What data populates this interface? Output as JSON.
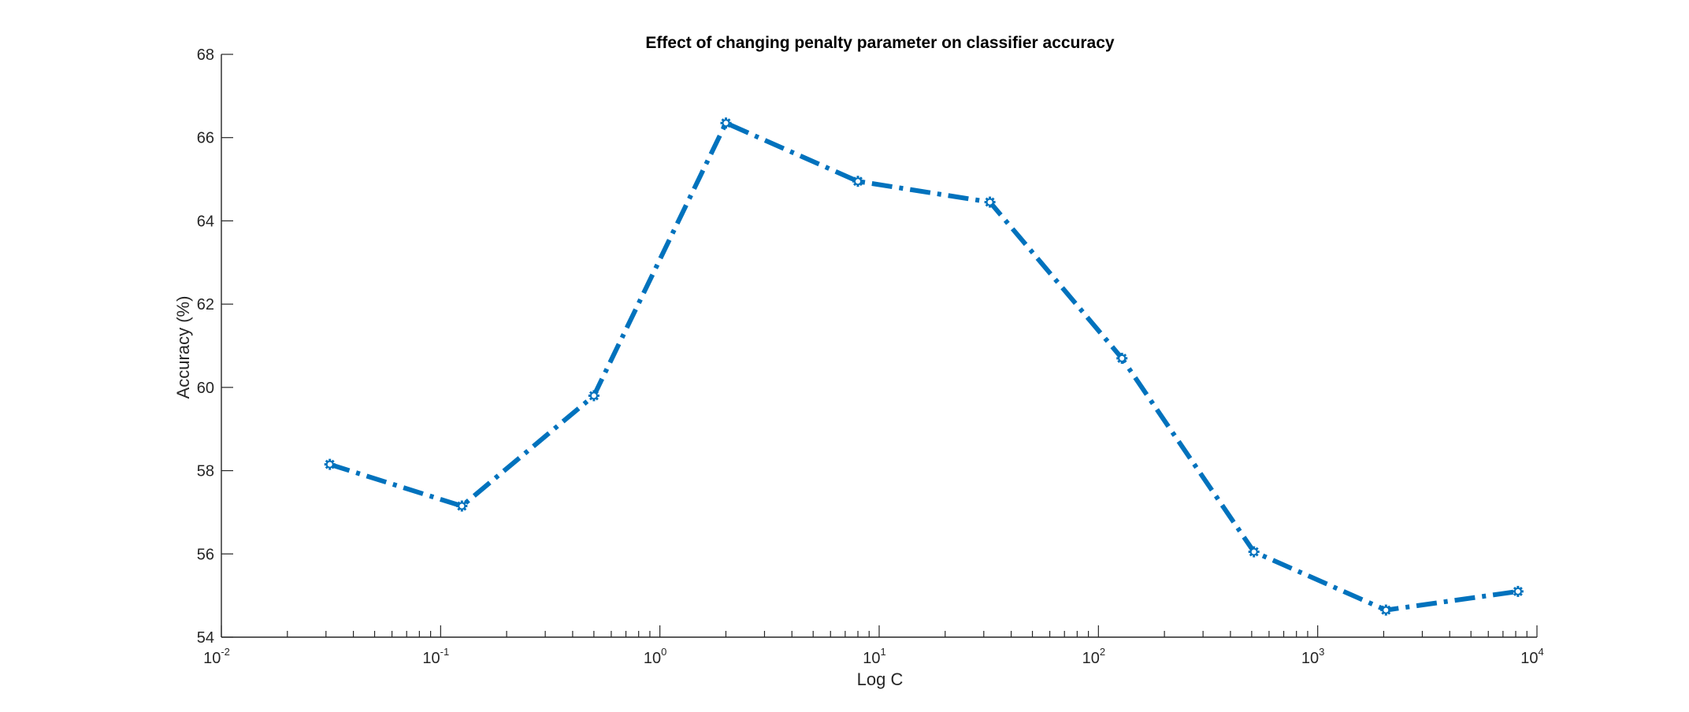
{
  "chart_data": {
    "type": "line",
    "title": "Effect of changing penalty parameter on classifier accuracy",
    "xlabel": "Log C",
    "ylabel": "Accuracy (%)",
    "x_scale": "log",
    "xlim": [
      0.01,
      10000
    ],
    "ylim": [
      54,
      68
    ],
    "x_ticks": [
      {
        "base": "10",
        "exp": "-2",
        "value": 0.01
      },
      {
        "base": "10",
        "exp": "-1",
        "value": 0.1
      },
      {
        "base": "10",
        "exp": "0",
        "value": 1
      },
      {
        "base": "10",
        "exp": "1",
        "value": 10
      },
      {
        "base": "10",
        "exp": "2",
        "value": 100
      },
      {
        "base": "10",
        "exp": "3",
        "value": 1000
      },
      {
        "base": "10",
        "exp": "4",
        "value": 10000
      }
    ],
    "y_ticks": [
      "54",
      "56",
      "58",
      "60",
      "62",
      "64",
      "66",
      "68"
    ],
    "grid": false,
    "legend": "none",
    "series": [
      {
        "color": "#0072BD",
        "line_style": "dash-dot",
        "marker": "asterisk",
        "x": [
          0.03125,
          0.125,
          0.5,
          2,
          8,
          32,
          128,
          512,
          2048,
          8192
        ],
        "y": [
          58.15,
          57.15,
          59.8,
          66.35,
          64.95,
          64.45,
          60.7,
          56.05,
          54.65,
          55.1
        ]
      }
    ]
  }
}
